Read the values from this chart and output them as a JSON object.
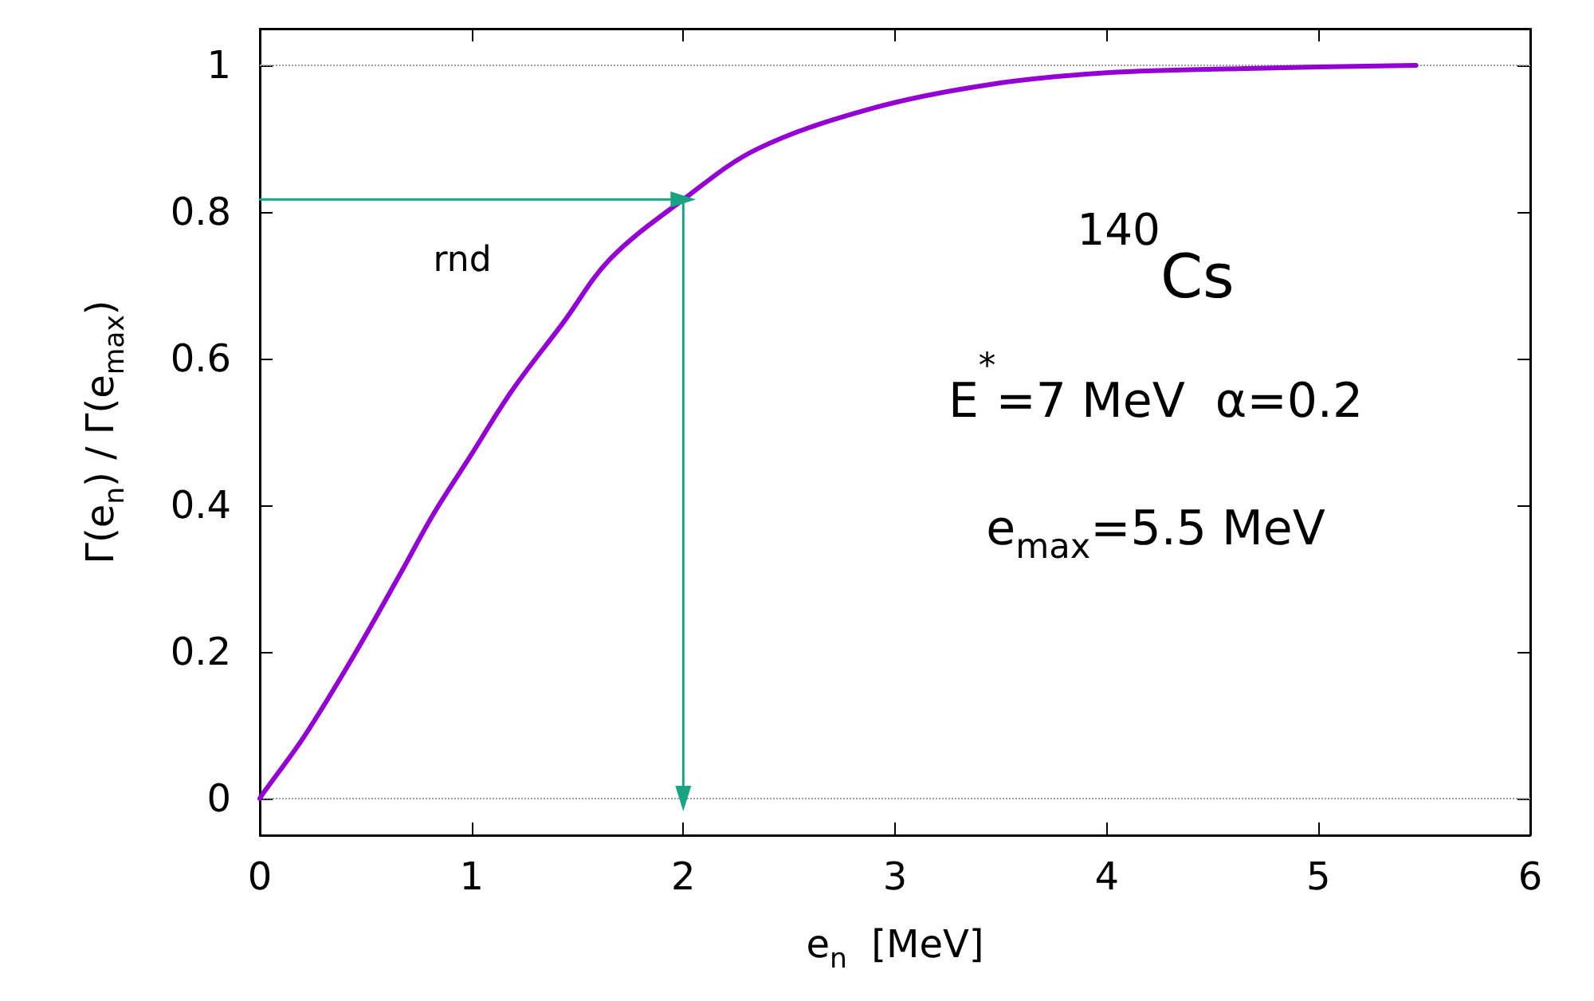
{
  "chart_data": {
    "type": "line",
    "xlabel": "e$_{n}$  [MeV]",
    "ylabel": "Γ(e$_{n}$) / Γ(e$_{max}$)",
    "series": [
      {
        "color": "#9400d3",
        "x": [
          0,
          0.01,
          0.21,
          0.45,
          0.67,
          0.82,
          0.99,
          1.19,
          1.43,
          1.655,
          2.0,
          2.35,
          2.9,
          3.45,
          4.0,
          4.7,
          5.46
        ],
        "values": [
          0,
          0.005,
          0.085,
          0.198,
          0.31,
          0.388,
          0.465,
          0.556,
          0.648,
          0.736,
          0.817,
          0.886,
          0.942,
          0.974,
          0.99,
          0.996,
          1.0
        ]
      },
      {
        "type": "line",
        "color": "#1aa383",
        "marker": "triangle",
        "x": [
          0,
          2,
          2
        ],
        "values": [
          0.817,
          0.817,
          0
        ]
      }
    ],
    "xlim": [
      0,
      6
    ],
    "xticks": [
      0,
      1,
      2,
      3,
      4,
      5,
      6
    ],
    "ylim": [
      -0.05,
      1.05
    ],
    "yticks": [
      0,
      0.2,
      0.4,
      0.6,
      0.8,
      1
    ],
    "grid": false,
    "marker": "none",
    "line_style": "solid",
    "ref_lines": [
      {
        "axis": "y",
        "value": 0,
        "color": "#a0a0a0",
        "line_style": "dotted"
      },
      {
        "axis": "y",
        "value": 1,
        "color": "#a0a0a0",
        "line_style": "dotted"
      }
    ],
    "annotations": [
      "rnd",
      "$^{140}$Cs",
      "E$^{*}$=7 MeV  α=0.2",
      "e$_{max}$=5.5 MeV"
    ]
  }
}
